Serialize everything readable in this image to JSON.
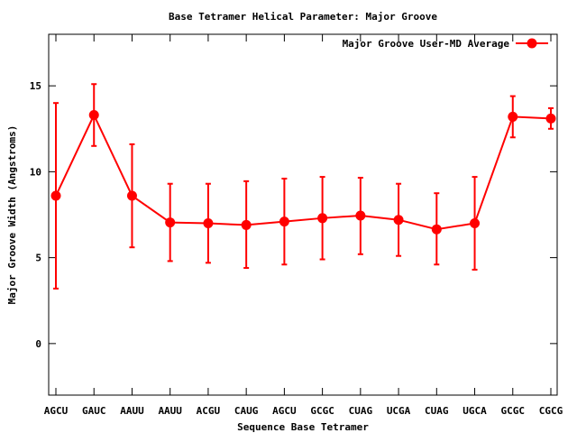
{
  "chart_data": {
    "type": "line",
    "title": "Base Tetramer Helical Parameter: Major Groove",
    "xlabel": "Sequence Base Tetramer",
    "ylabel": "Major Groove Width (Angstroms)",
    "categories": [
      "AGCU",
      "GAUC",
      "AAUU",
      "AAUU",
      "ACGU",
      "CAUG",
      "AGCU",
      "GCGC",
      "CUAG",
      "UCGA",
      "CUAG",
      "UGCA",
      "GCGC",
      "CGCG"
    ],
    "ylim": [
      -3,
      18
    ],
    "yticks": [
      0,
      5,
      10,
      15
    ],
    "grid": false,
    "legend_position": "top-right",
    "series": [
      {
        "name": "Major Groove User-MD Average",
        "color": "#ff0000",
        "values": [
          8.6,
          13.3,
          8.6,
          7.05,
          7.0,
          6.9,
          7.1,
          7.3,
          7.45,
          7.2,
          6.65,
          7.0,
          13.2,
          13.1
        ],
        "err_low": [
          3.2,
          11.5,
          5.6,
          4.8,
          4.7,
          4.4,
          4.6,
          4.9,
          5.2,
          5.1,
          4.6,
          4.3,
          12.0,
          12.5
        ],
        "err_high": [
          14.0,
          15.1,
          11.6,
          9.3,
          9.3,
          9.45,
          9.6,
          9.7,
          9.65,
          9.3,
          8.75,
          9.7,
          14.4,
          13.7
        ]
      }
    ]
  }
}
